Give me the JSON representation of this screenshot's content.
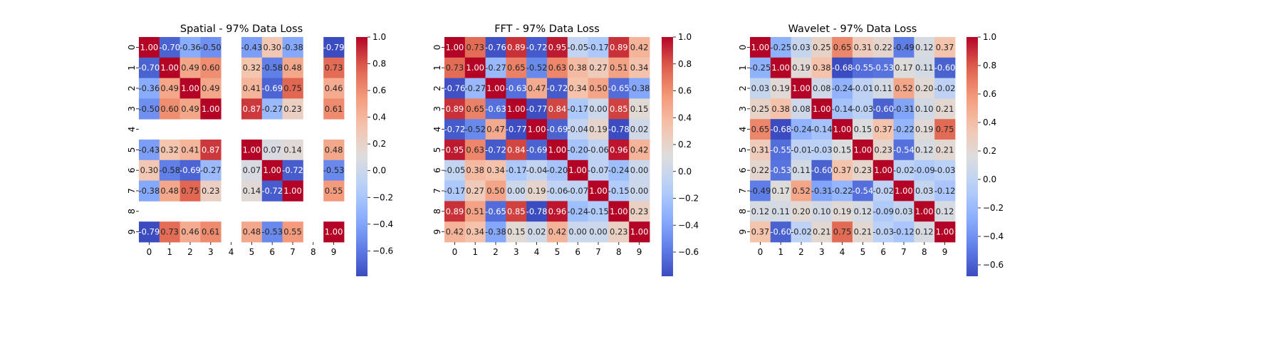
{
  "chart_data": [
    {
      "type": "heatmap",
      "title": "Spatial - 97% Data Loss",
      "xlabel": "",
      "ylabel": "",
      "x_categories": [
        "0",
        "1",
        "2",
        "3",
        "4",
        "5",
        "6",
        "7",
        "8",
        "9"
      ],
      "y_categories": [
        "0",
        "1",
        "2",
        "3",
        "4",
        "5",
        "6",
        "7",
        "8",
        "9"
      ],
      "values": [
        [
          1.0,
          -0.7,
          -0.36,
          -0.5,
          null,
          -0.43,
          0.3,
          -0.38,
          null,
          -0.79
        ],
        [
          -0.7,
          1.0,
          0.49,
          0.6,
          null,
          0.32,
          -0.58,
          0.48,
          null,
          0.73
        ],
        [
          -0.36,
          0.49,
          1.0,
          0.49,
          null,
          0.41,
          -0.69,
          0.75,
          null,
          0.46
        ],
        [
          -0.5,
          0.6,
          0.49,
          1.0,
          null,
          0.87,
          -0.27,
          0.23,
          null,
          0.61
        ],
        [
          null,
          null,
          null,
          null,
          null,
          null,
          null,
          null,
          null,
          null
        ],
        [
          -0.43,
          0.32,
          0.41,
          0.87,
          null,
          1.0,
          0.07,
          0.14,
          null,
          0.48
        ],
        [
          0.3,
          -0.58,
          -0.69,
          -0.27,
          null,
          0.07,
          1.0,
          -0.72,
          null,
          -0.53
        ],
        [
          -0.38,
          0.48,
          0.75,
          0.23,
          null,
          0.14,
          -0.72,
          1.0,
          null,
          0.55
        ],
        [
          null,
          null,
          null,
          null,
          null,
          null,
          null,
          null,
          null,
          null
        ],
        [
          -0.79,
          0.73,
          0.46,
          0.61,
          null,
          0.48,
          -0.53,
          0.55,
          null,
          1.0
        ]
      ],
      "vmin": -0.79,
      "vmax": 1.0,
      "colorbar_ticks": [
        "1.0",
        "0.8",
        "0.6",
        "0.4",
        "0.2",
        "0.0",
        "−0.2",
        "−0.4",
        "−0.6"
      ],
      "colormap": "coolwarm"
    },
    {
      "type": "heatmap",
      "title": "FFT - 97% Data Loss",
      "xlabel": "",
      "ylabel": "",
      "x_categories": [
        "0",
        "1",
        "2",
        "3",
        "4",
        "5",
        "6",
        "7",
        "8",
        "9"
      ],
      "y_categories": [
        "0",
        "1",
        "2",
        "3",
        "4",
        "5",
        "6",
        "7",
        "8",
        "9"
      ],
      "values": [
        [
          1.0,
          0.73,
          -0.76,
          0.89,
          -0.72,
          0.95,
          -0.05,
          -0.17,
          0.89,
          0.42
        ],
        [
          0.73,
          1.0,
          -0.27,
          0.65,
          -0.52,
          0.63,
          0.38,
          0.27,
          0.51,
          0.34
        ],
        [
          -0.76,
          -0.27,
          1.0,
          -0.63,
          0.47,
          -0.72,
          0.34,
          0.5,
          -0.65,
          -0.38
        ],
        [
          0.89,
          0.65,
          -0.63,
          1.0,
          -0.77,
          0.84,
          -0.17,
          -0.0,
          0.85,
          0.15
        ],
        [
          -0.72,
          -0.52,
          0.47,
          -0.77,
          1.0,
          -0.69,
          -0.04,
          0.19,
          -0.78,
          0.02
        ],
        [
          0.95,
          0.63,
          -0.72,
          0.84,
          -0.69,
          1.0,
          -0.2,
          -0.06,
          0.96,
          0.42
        ],
        [
          -0.05,
          0.38,
          0.34,
          -0.17,
          -0.04,
          -0.2,
          1.0,
          -0.07,
          -0.24,
          0.0
        ],
        [
          -0.17,
          0.27,
          0.5,
          -0.0,
          0.19,
          -0.06,
          -0.07,
          1.0,
          -0.15,
          -0.0
        ],
        [
          0.89,
          0.51,
          -0.65,
          0.85,
          -0.78,
          0.96,
          -0.24,
          -0.15,
          1.0,
          0.23
        ],
        [
          0.42,
          0.34,
          -0.38,
          0.15,
          0.02,
          0.42,
          0.0,
          -0.0,
          0.23,
          1.0
        ]
      ],
      "vmin": -0.78,
      "vmax": 1.0,
      "colorbar_ticks": [
        "1.0",
        "0.8",
        "0.6",
        "0.4",
        "0.2",
        "0.0",
        "−0.2",
        "−0.4",
        "−0.6"
      ],
      "colormap": "coolwarm"
    },
    {
      "type": "heatmap",
      "title": "Wavelet - 97% Data Loss",
      "xlabel": "",
      "ylabel": "",
      "x_categories": [
        "0",
        "1",
        "2",
        "3",
        "4",
        "5",
        "6",
        "7",
        "8",
        "9"
      ],
      "y_categories": [
        "0",
        "1",
        "2",
        "3",
        "4",
        "5",
        "6",
        "7",
        "8",
        "9"
      ],
      "values": [
        [
          1.0,
          -0.25,
          0.03,
          0.25,
          0.65,
          0.31,
          0.22,
          -0.49,
          0.12,
          0.37
        ],
        [
          -0.25,
          1.0,
          0.19,
          0.38,
          -0.68,
          -0.55,
          -0.53,
          0.17,
          0.11,
          -0.6
        ],
        [
          0.03,
          0.19,
          1.0,
          0.08,
          -0.24,
          -0.01,
          0.11,
          0.52,
          0.2,
          -0.02
        ],
        [
          0.25,
          0.38,
          0.08,
          1.0,
          -0.14,
          -0.03,
          -0.6,
          -0.31,
          0.1,
          0.21
        ],
        [
          0.65,
          -0.68,
          -0.24,
          -0.14,
          1.0,
          0.15,
          0.37,
          -0.22,
          0.19,
          0.75
        ],
        [
          0.31,
          -0.55,
          -0.01,
          -0.03,
          0.15,
          1.0,
          0.23,
          -0.54,
          0.12,
          0.21
        ],
        [
          0.22,
          -0.53,
          0.11,
          -0.6,
          0.37,
          0.23,
          1.0,
          -0.02,
          -0.09,
          -0.03
        ],
        [
          -0.49,
          0.17,
          0.52,
          -0.31,
          -0.22,
          -0.54,
          -0.02,
          1.0,
          0.03,
          -0.12
        ],
        [
          0.12,
          0.11,
          0.2,
          0.1,
          0.19,
          0.12,
          -0.09,
          0.03,
          1.0,
          0.12
        ],
        [
          0.37,
          -0.6,
          -0.02,
          0.21,
          0.75,
          0.21,
          -0.03,
          -0.12,
          0.12,
          1.0
        ]
      ],
      "vmin": -0.68,
      "vmax": 1.0,
      "colorbar_ticks": [
        "1.0",
        "0.8",
        "0.6",
        "0.4",
        "0.2",
        "0.0",
        "−0.2",
        "−0.4",
        "−0.6"
      ],
      "colormap": "coolwarm"
    }
  ]
}
